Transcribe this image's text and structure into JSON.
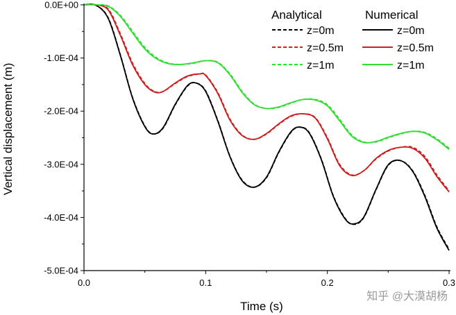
{
  "chart_data": {
    "type": "line",
    "title": "",
    "xlabel": "Time (s)",
    "ylabel": "Vertical displacement (m)",
    "xlim": [
      0.0,
      0.3
    ],
    "ylim": [
      -0.0005,
      0.0
    ],
    "xticks": [
      0.0,
      0.1,
      0.2,
      0.3
    ],
    "xtick_labels": [
      "0.0",
      "0.1",
      "0.2",
      "0.3"
    ],
    "yticks": [
      0.0,
      -0.0001,
      -0.0002,
      -0.0003,
      -0.0004,
      -0.0005
    ],
    "ytick_labels": [
      "0.0E+00",
      "-1.0E-04",
      "-2.0E-04",
      "-3.0E-04",
      "-4.0E-04",
      "-5.0E-04"
    ],
    "grid": false,
    "legend_position": "top-right",
    "legend_headers": [
      "Analytical",
      "Numerical"
    ],
    "series": [
      {
        "name": "z=0m",
        "group": "Analytical",
        "style": "dashed",
        "color": "#000000",
        "x": [
          0,
          0.01,
          0.02,
          0.03,
          0.04,
          0.05,
          0.057,
          0.065,
          0.075,
          0.085,
          0.092,
          0.1,
          0.11,
          0.12,
          0.13,
          0.14,
          0.15,
          0.16,
          0.17,
          0.177,
          0.185,
          0.195,
          0.205,
          0.215,
          0.222,
          0.23,
          0.24,
          0.25,
          0.26,
          0.27,
          0.28,
          0.29,
          0.3
        ],
        "y": [
          0,
          -1e-06,
          -2.5e-05,
          -9.5e-05,
          -0.000175,
          -0.000228,
          -0.000243,
          -0.000232,
          -0.000188,
          -0.000153,
          -0.000147,
          -0.000162,
          -0.000218,
          -0.000285,
          -0.00033,
          -0.000343,
          -0.000325,
          -0.000278,
          -0.00024,
          -0.00023,
          -0.00024,
          -0.00029,
          -0.00036,
          -0.000403,
          -0.000413,
          -0.0004,
          -0.000348,
          -0.000302,
          -0.000293,
          -0.000312,
          -0.000358,
          -0.000418,
          -0.00046
        ]
      },
      {
        "name": "z=0.5m",
        "group": "Analytical",
        "style": "dashed",
        "color": "#cc1f1f",
        "x": [
          0,
          0.01,
          0.02,
          0.03,
          0.04,
          0.05,
          0.058,
          0.065,
          0.075,
          0.085,
          0.095,
          0.1,
          0.11,
          0.12,
          0.13,
          0.14,
          0.15,
          0.16,
          0.17,
          0.18,
          0.19,
          0.2,
          0.21,
          0.22,
          0.23,
          0.24,
          0.25,
          0.26,
          0.27,
          0.28,
          0.29,
          0.3
        ],
        "y": [
          0,
          0,
          -8e-06,
          -5.5e-05,
          -0.00011,
          -0.000148,
          -0.000163,
          -0.000163,
          -0.000148,
          -0.000135,
          -0.00013,
          -0.000132,
          -0.000165,
          -0.000215,
          -0.000245,
          -0.000253,
          -0.000243,
          -0.000225,
          -0.00021,
          -0.000205,
          -0.000212,
          -0.00025,
          -0.0003,
          -0.00032,
          -0.000312,
          -0.00029,
          -0.000275,
          -0.000268,
          -0.000268,
          -0.000285,
          -0.00032,
          -0.00035
        ]
      },
      {
        "name": "z=1m",
        "group": "Analytical",
        "style": "dashed",
        "color": "#33dd33",
        "x": [
          0,
          0.01,
          0.02,
          0.03,
          0.04,
          0.05,
          0.06,
          0.07,
          0.08,
          0.09,
          0.1,
          0.11,
          0.12,
          0.13,
          0.14,
          0.15,
          0.16,
          0.17,
          0.18,
          0.19,
          0.2,
          0.21,
          0.22,
          0.23,
          0.24,
          0.25,
          0.26,
          0.27,
          0.28,
          0.29,
          0.3
        ],
        "y": [
          0,
          0,
          -2e-06,
          -2e-05,
          -5e-05,
          -8e-05,
          -0.0001,
          -0.00011,
          -0.000112,
          -0.00011,
          -0.000105,
          -0.000108,
          -0.00013,
          -0.000163,
          -0.000187,
          -0.000195,
          -0.000193,
          -0.000185,
          -0.000178,
          -0.000178,
          -0.000188,
          -0.000215,
          -0.000245,
          -0.000258,
          -0.000258,
          -0.00025,
          -0.000243,
          -0.000238,
          -0.00024,
          -0.000252,
          -0.00027
        ]
      },
      {
        "name": "z=0m",
        "group": "Numerical",
        "style": "solid",
        "color": "#000000",
        "x": [
          0,
          0.01,
          0.02,
          0.03,
          0.04,
          0.05,
          0.057,
          0.065,
          0.075,
          0.085,
          0.092,
          0.1,
          0.11,
          0.12,
          0.13,
          0.14,
          0.15,
          0.16,
          0.17,
          0.177,
          0.185,
          0.195,
          0.205,
          0.215,
          0.222,
          0.23,
          0.24,
          0.25,
          0.26,
          0.27,
          0.28,
          0.29,
          0.3
        ],
        "y": [
          0,
          -1e-06,
          -2.6e-05,
          -9.6e-05,
          -0.000176,
          -0.000229,
          -0.000243,
          -0.000231,
          -0.000187,
          -0.000152,
          -0.000147,
          -0.000163,
          -0.000219,
          -0.000286,
          -0.000331,
          -0.000343,
          -0.000324,
          -0.000277,
          -0.000239,
          -0.00023,
          -0.000241,
          -0.000291,
          -0.000361,
          -0.000404,
          -0.000412,
          -0.000399,
          -0.000347,
          -0.000301,
          -0.000293,
          -0.000313,
          -0.00036,
          -0.00042,
          -0.000462
        ]
      },
      {
        "name": "z=0.5m",
        "group": "Numerical",
        "style": "solid",
        "color": "#cc1f1f",
        "x": [
          0,
          0.01,
          0.02,
          0.03,
          0.04,
          0.05,
          0.058,
          0.065,
          0.075,
          0.085,
          0.095,
          0.1,
          0.11,
          0.12,
          0.13,
          0.14,
          0.15,
          0.16,
          0.17,
          0.18,
          0.19,
          0.2,
          0.21,
          0.22,
          0.23,
          0.24,
          0.25,
          0.26,
          0.27,
          0.28,
          0.29,
          0.3
        ],
        "y": [
          0,
          0,
          -1e-05,
          -5.8e-05,
          -0.000113,
          -0.00015,
          -0.000164,
          -0.000163,
          -0.000147,
          -0.000134,
          -0.00013,
          -0.000133,
          -0.000167,
          -0.000217,
          -0.000246,
          -0.000253,
          -0.000242,
          -0.000224,
          -0.000209,
          -0.000205,
          -0.000213,
          -0.000252,
          -0.000302,
          -0.000321,
          -0.000312,
          -0.000289,
          -0.000274,
          -0.000268,
          -0.00027,
          -0.000288,
          -0.000323,
          -0.000352
        ]
      },
      {
        "name": "z=1m",
        "group": "Numerical",
        "style": "solid",
        "color": "#33dd33",
        "x": [
          0,
          0.01,
          0.02,
          0.03,
          0.04,
          0.05,
          0.06,
          0.07,
          0.08,
          0.09,
          0.1,
          0.11,
          0.12,
          0.13,
          0.14,
          0.15,
          0.16,
          0.17,
          0.18,
          0.19,
          0.2,
          0.21,
          0.22,
          0.23,
          0.24,
          0.25,
          0.26,
          0.27,
          0.28,
          0.29,
          0.3
        ],
        "y": [
          0,
          0,
          -3e-06,
          -2.2e-05,
          -5.3e-05,
          -8.3e-05,
          -0.000102,
          -0.000111,
          -0.000112,
          -0.000109,
          -0.000105,
          -0.000109,
          -0.000132,
          -0.000165,
          -0.000188,
          -0.000195,
          -0.000192,
          -0.000184,
          -0.000178,
          -0.000179,
          -0.00019,
          -0.000218,
          -0.000247,
          -0.000259,
          -0.000257,
          -0.000249,
          -0.000242,
          -0.000238,
          -0.000241,
          -0.000254,
          -0.000272
        ]
      }
    ]
  },
  "watermark": "知乎 @大漠胡杨"
}
